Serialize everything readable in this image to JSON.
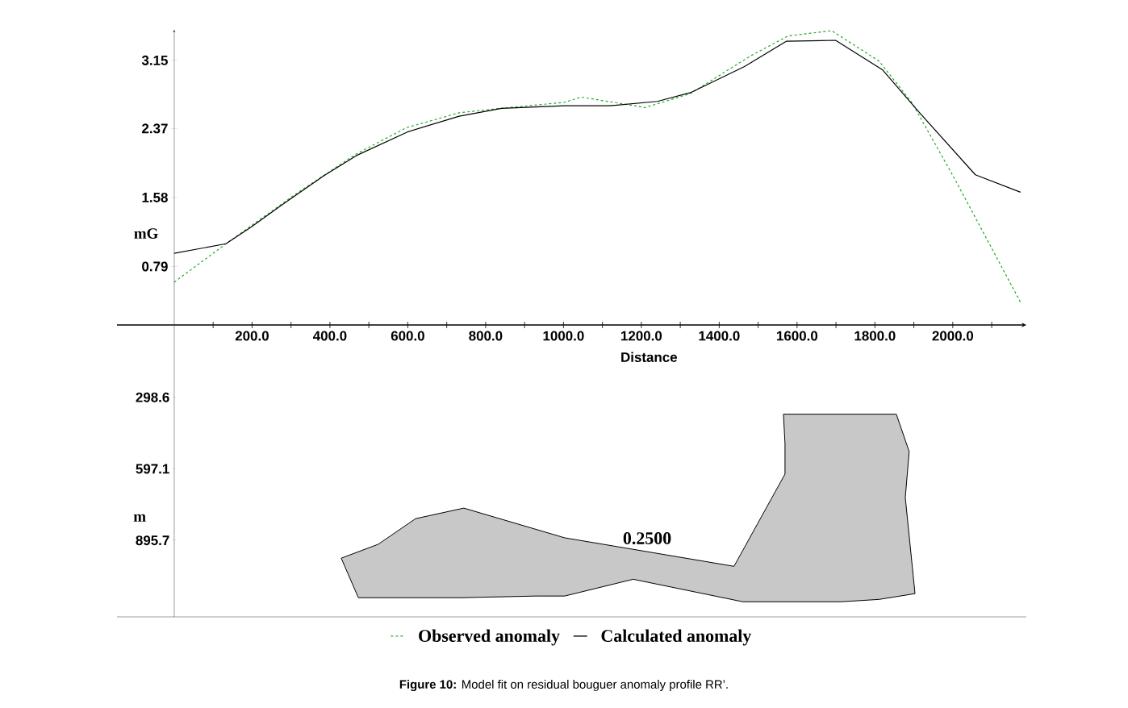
{
  "chart_data": [
    {
      "type": "line",
      "xlabel": "Distance",
      "ylabel": "mG",
      "xlim": [
        -147,
        2189
      ],
      "ylim": [
        0.12,
        3.5
      ],
      "xticks": [
        {
          "value": 100,
          "label": null
        },
        {
          "value": 200,
          "label": "200.0"
        },
        {
          "value": 300,
          "label": null
        },
        {
          "value": 400,
          "label": "400.0"
        },
        {
          "value": 500,
          "label": null
        },
        {
          "value": 600,
          "label": "600.0"
        },
        {
          "value": 700,
          "label": null
        },
        {
          "value": 800,
          "label": "800.0"
        },
        {
          "value": 900,
          "label": null
        },
        {
          "value": 1000,
          "label": "1000.0"
        },
        {
          "value": 1100,
          "label": null
        },
        {
          "value": 1200,
          "label": "1200.0"
        },
        {
          "value": 1300,
          "label": null
        },
        {
          "value": 1400,
          "label": "1400.0"
        },
        {
          "value": 1500,
          "label": null
        },
        {
          "value": 1600,
          "label": "1600.0"
        },
        {
          "value": 1700,
          "label": null
        },
        {
          "value": 1800,
          "label": "1800.0"
        },
        {
          "value": 1900,
          "label": null
        },
        {
          "value": 2000,
          "label": "2000.0"
        },
        {
          "value": 2100,
          "label": null
        }
      ],
      "yticks": [
        0.79,
        1.58,
        2.37,
        3.15
      ],
      "legend": "bottom",
      "series": [
        {
          "name": "Observed anomaly",
          "color": "#22aa22",
          "line_style": "dashed",
          "x": [
            0,
            133,
            309,
            468,
            597,
            732,
            837,
            1003,
            1045,
            1210,
            1326,
            1480,
            1577,
            1689,
            1811,
            1896,
            2004,
            2174
          ],
          "values": [
            0.61,
            1.05,
            1.61,
            2.08,
            2.38,
            2.55,
            2.6,
            2.67,
            2.73,
            2.61,
            2.77,
            3.2,
            3.43,
            3.49,
            3.14,
            2.66,
            1.8,
            0.38
          ]
        },
        {
          "name": "Calculated anomaly",
          "color": "#000000",
          "line_style": "solid",
          "x": [
            0,
            133,
            197,
            294,
            385,
            468,
            599,
            732,
            841,
            1003,
            1119,
            1241,
            1326,
            1465,
            1573,
            1699,
            1820,
            1913,
            2058,
            2174
          ],
          "values": [
            0.94,
            1.05,
            1.24,
            1.55,
            1.83,
            2.06,
            2.33,
            2.51,
            2.6,
            2.63,
            2.63,
            2.68,
            2.78,
            3.08,
            3.37,
            3.38,
            3.04,
            2.56,
            1.84,
            1.64
          ]
        }
      ],
      "annotations": [
        "**Figure 10:** Model fit on residual bouguer anomaly profile RR’."
      ]
    },
    {
      "type": "area",
      "ylabel": "m",
      "tick_labels": "y",
      "xlim": [
        -147,
        2189
      ],
      "ylim": [
        1215,
        0
      ],
      "yticks": [
        298.6,
        597.1,
        895.7
      ],
      "series": [
        {
          "color": "#c8c8c8",
          "x": [
            429,
            524,
            620,
            744,
            1003,
            1179,
            1438,
            1569,
            1569,
            1565,
            1855,
            1888,
            1878,
            1903,
            1811,
            1712,
            1550,
            1461,
            1179,
            1003,
            929,
            736,
            473
          ],
          "values": [
            970,
            912,
            805,
            761,
            885,
            933,
            1004,
            619,
            491,
            369,
            369,
            525,
            717,
            1118,
            1142,
            1152,
            1152,
            1152,
            1058,
            1128,
            1128,
            1135,
            1135
          ]
        }
      ],
      "annotations": [
        "0.2500"
      ]
    }
  ]
}
